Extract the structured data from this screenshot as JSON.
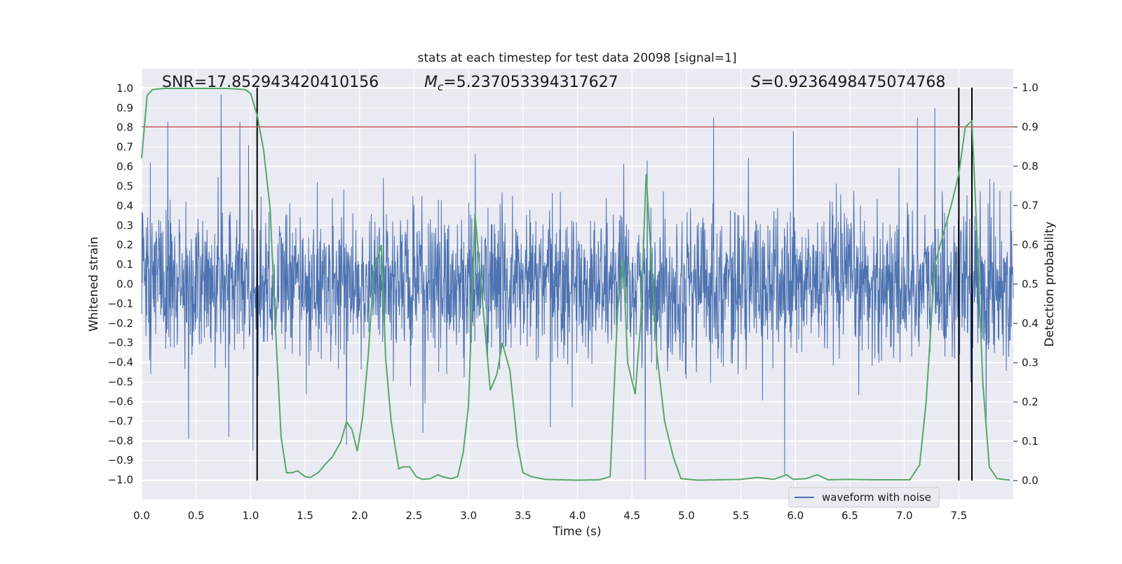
{
  "chart_data": {
    "type": "line",
    "title": "stats at each timestep for test data 20098 [signal=1]",
    "xlabel": "Time (s)",
    "ylabel": "Whitened strain",
    "y2label": "Detection probability",
    "xlim": [
      0.0,
      8.0
    ],
    "ylim": [
      -1.1,
      1.1
    ],
    "y2lim": [
      -0.048,
      1.048
    ],
    "grid": true,
    "x_ticks": [
      "0.0",
      "0.5",
      "1.0",
      "1.5",
      "2.0",
      "2.5",
      "3.0",
      "3.5",
      "4.0",
      "4.5",
      "5.0",
      "5.5",
      "6.0",
      "6.5",
      "7.0",
      "7.5"
    ],
    "y_ticks": [
      "1.0",
      "0.9",
      "0.8",
      "0.7",
      "0.6",
      "0.5",
      "0.4",
      "0.3",
      "0.2",
      "0.1",
      "0.0",
      "-0.1",
      "-0.2",
      "-0.3",
      "-0.4",
      "-0.5",
      "-0.6",
      "-0.7",
      "-0.8",
      "-0.9",
      "-1.0"
    ],
    "y2_ticks": [
      "1.0",
      "0.9",
      "0.8",
      "0.7",
      "0.6",
      "0.5",
      "0.4",
      "0.3",
      "0.2",
      "0.1",
      "0.0"
    ],
    "annotations": {
      "snr": "SNR=17.852943420410156",
      "mc_symbol": "M",
      "mc_sub": "c",
      "mc_value": "=5.237053394317627",
      "s_symbol": "S",
      "s_value": "=0.9236498475074768"
    },
    "legend": {
      "location": "lower-right",
      "label": "waveform with noise"
    },
    "threshold": {
      "y2": 0.9,
      "color": "#c44e52"
    },
    "vertical_lines_x": [
      1.06,
      7.5,
      7.62
    ],
    "waveform": {
      "name": "waveform with noise",
      "color": "#4c72b0",
      "envelope_typical": 0.45,
      "spikes": [
        {
          "x": 0.24,
          "y": 0.83
        },
        {
          "x": 0.73,
          "y": 0.97
        },
        {
          "x": 0.9,
          "y": 0.83
        },
        {
          "x": 0.98,
          "y": 0.71
        },
        {
          "x": 5.25,
          "y": 0.85
        },
        {
          "x": 5.98,
          "y": 0.78
        },
        {
          "x": 7.12,
          "y": 0.85
        },
        {
          "x": 7.28,
          "y": 0.9
        },
        {
          "x": 7.5,
          "y": 0.69
        },
        {
          "x": 7.62,
          "y": 0.88
        },
        {
          "x": 0.43,
          "y": -0.79
        },
        {
          "x": 0.8,
          "y": -0.78
        },
        {
          "x": 1.02,
          "y": -0.85
        },
        {
          "x": 1.88,
          "y": -0.82
        },
        {
          "x": 2.58,
          "y": -0.76
        },
        {
          "x": 3.75,
          "y": -0.73
        },
        {
          "x": 4.62,
          "y": -1.0
        },
        {
          "x": 5.9,
          "y": -0.98
        },
        {
          "x": 7.75,
          "y": -0.72
        }
      ]
    },
    "probability": {
      "name": "detection probability",
      "color": "#55a868",
      "points": [
        [
          0.0,
          0.82
        ],
        [
          0.05,
          0.98
        ],
        [
          0.1,
          0.995
        ],
        [
          0.2,
          0.998
        ],
        [
          0.4,
          0.998
        ],
        [
          0.6,
          0.998
        ],
        [
          0.8,
          0.998
        ],
        [
          0.95,
          0.995
        ],
        [
          1.0,
          0.985
        ],
        [
          1.06,
          0.93
        ],
        [
          1.12,
          0.84
        ],
        [
          1.18,
          0.69
        ],
        [
          1.23,
          0.38
        ],
        [
          1.28,
          0.11
        ],
        [
          1.33,
          0.02
        ],
        [
          1.38,
          0.02
        ],
        [
          1.43,
          0.025
        ],
        [
          1.5,
          0.01
        ],
        [
          1.55,
          0.008
        ],
        [
          1.62,
          0.02
        ],
        [
          1.68,
          0.04
        ],
        [
          1.75,
          0.06
        ],
        [
          1.83,
          0.1
        ],
        [
          1.88,
          0.15
        ],
        [
          1.93,
          0.13
        ],
        [
          1.98,
          0.075
        ],
        [
          2.03,
          0.165
        ],
        [
          2.08,
          0.32
        ],
        [
          2.13,
          0.53
        ],
        [
          2.2,
          0.6
        ],
        [
          2.24,
          0.31
        ],
        [
          2.29,
          0.15
        ],
        [
          2.33,
          0.08
        ],
        [
          2.36,
          0.03
        ],
        [
          2.4,
          0.035
        ],
        [
          2.46,
          0.035
        ],
        [
          2.52,
          0.01
        ],
        [
          2.58,
          0.003
        ],
        [
          2.65,
          0.005
        ],
        [
          2.72,
          0.015
        ],
        [
          2.76,
          0.01
        ],
        [
          2.84,
          0.005
        ],
        [
          2.9,
          0.01
        ],
        [
          2.95,
          0.07
        ],
        [
          3.0,
          0.19
        ],
        [
          3.06,
          0.68
        ],
        [
          3.13,
          0.45
        ],
        [
          3.2,
          0.23
        ],
        [
          3.26,
          0.27
        ],
        [
          3.31,
          0.35
        ],
        [
          3.38,
          0.28
        ],
        [
          3.45,
          0.09
        ],
        [
          3.5,
          0.02
        ],
        [
          3.58,
          0.01
        ],
        [
          3.7,
          0.003
        ],
        [
          3.85,
          0.002
        ],
        [
          4.0,
          0.001
        ],
        [
          4.2,
          0.002
        ],
        [
          4.3,
          0.01
        ],
        [
          4.37,
          0.44
        ],
        [
          4.42,
          0.56
        ],
        [
          4.46,
          0.3
        ],
        [
          4.53,
          0.22
        ],
        [
          4.58,
          0.4
        ],
        [
          4.63,
          0.78
        ],
        [
          4.68,
          0.55
        ],
        [
          4.73,
          0.32
        ],
        [
          4.8,
          0.15
        ],
        [
          4.88,
          0.06
        ],
        [
          4.95,
          0.005
        ],
        [
          5.1,
          0.001
        ],
        [
          5.3,
          0.002
        ],
        [
          5.5,
          0.003
        ],
        [
          5.65,
          0.008
        ],
        [
          5.8,
          0.003
        ],
        [
          5.92,
          0.015
        ],
        [
          5.98,
          0.003
        ],
        [
          6.1,
          0.005
        ],
        [
          6.2,
          0.015
        ],
        [
          6.3,
          0.002
        ],
        [
          6.5,
          0.003
        ],
        [
          6.7,
          0.002
        ],
        [
          6.9,
          0.002
        ],
        [
          7.05,
          0.002
        ],
        [
          7.14,
          0.04
        ],
        [
          7.2,
          0.2
        ],
        [
          7.28,
          0.55
        ],
        [
          7.35,
          0.62
        ],
        [
          7.43,
          0.7
        ],
        [
          7.5,
          0.78
        ],
        [
          7.56,
          0.9
        ],
        [
          7.62,
          0.915
        ],
        [
          7.67,
          0.6
        ],
        [
          7.72,
          0.25
        ],
        [
          7.78,
          0.035
        ],
        [
          7.85,
          0.005
        ],
        [
          7.97,
          0.001
        ]
      ]
    }
  }
}
